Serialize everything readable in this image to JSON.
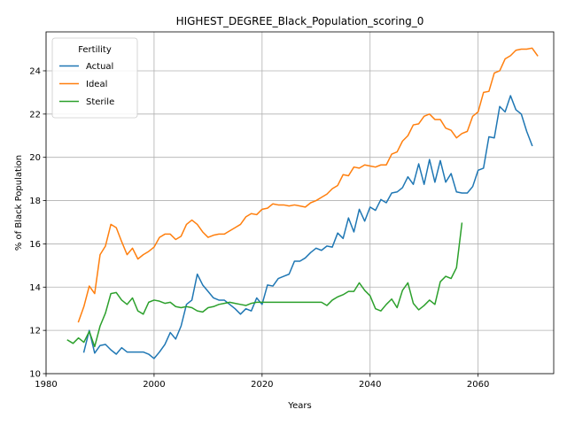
{
  "chart_data": {
    "type": "line",
    "title": "HIGHEST_DEGREE_Black_Population_scoring_0",
    "xlabel": "Years",
    "ylabel": "% of Black Population",
    "xlim": [
      1980,
      2074
    ],
    "ylim": [
      10,
      25.8
    ],
    "xticks": [
      1980,
      2000,
      2020,
      2040,
      2060
    ],
    "yticks": [
      10,
      12,
      14,
      16,
      18,
      20,
      22,
      24
    ],
    "grid": true,
    "legend": {
      "title": "Fertility",
      "placement": "top-left"
    },
    "series": [
      {
        "name": "Actual",
        "color": "#1f77b4",
        "points": [
          [
            1987,
            11.0
          ],
          [
            1988,
            12.0
          ],
          [
            1989,
            10.95
          ],
          [
            1990,
            11.3
          ],
          [
            1991,
            11.35
          ],
          [
            1992,
            11.1
          ],
          [
            1993,
            10.9
          ],
          [
            1994,
            11.2
          ],
          [
            1995,
            11.0
          ],
          [
            1996,
            11.0
          ],
          [
            1997,
            11.0
          ],
          [
            1998,
            11.0
          ],
          [
            1999,
            10.9
          ],
          [
            2000,
            10.7
          ],
          [
            2001,
            11.0
          ],
          [
            2002,
            11.35
          ],
          [
            2003,
            11.9
          ],
          [
            2004,
            11.6
          ],
          [
            2005,
            12.2
          ],
          [
            2006,
            13.2
          ],
          [
            2007,
            13.4
          ],
          [
            2008,
            14.6
          ],
          [
            2009,
            14.1
          ],
          [
            2010,
            13.8
          ],
          [
            2011,
            13.5
          ],
          [
            2012,
            13.4
          ],
          [
            2013,
            13.4
          ],
          [
            2014,
            13.2
          ],
          [
            2015,
            13.0
          ],
          [
            2016,
            12.75
          ],
          [
            2017,
            13.0
          ],
          [
            2018,
            12.9
          ],
          [
            2019,
            13.5
          ],
          [
            2020,
            13.2
          ],
          [
            2021,
            14.1
          ],
          [
            2022,
            14.05
          ],
          [
            2023,
            14.4
          ],
          [
            2024,
            14.5
          ],
          [
            2025,
            14.6
          ],
          [
            2026,
            15.2
          ],
          [
            2027,
            15.2
          ],
          [
            2028,
            15.35
          ],
          [
            2029,
            15.6
          ],
          [
            2030,
            15.8
          ],
          [
            2031,
            15.7
          ],
          [
            2032,
            15.9
          ],
          [
            2033,
            15.85
          ],
          [
            2034,
            16.5
          ],
          [
            2035,
            16.25
          ],
          [
            2036,
            17.2
          ],
          [
            2037,
            16.55
          ],
          [
            2038,
            17.6
          ],
          [
            2039,
            17.05
          ],
          [
            2040,
            17.7
          ],
          [
            2041,
            17.55
          ],
          [
            2042,
            18.05
          ],
          [
            2043,
            17.9
          ],
          [
            2044,
            18.35
          ],
          [
            2045,
            18.4
          ],
          [
            2046,
            18.6
          ],
          [
            2047,
            19.1
          ],
          [
            2048,
            18.75
          ],
          [
            2049,
            19.7
          ],
          [
            2050,
            18.75
          ],
          [
            2051,
            19.9
          ],
          [
            2052,
            18.85
          ],
          [
            2053,
            19.85
          ],
          [
            2054,
            18.85
          ],
          [
            2055,
            19.25
          ],
          [
            2056,
            18.4
          ],
          [
            2057,
            18.35
          ],
          [
            2058,
            18.35
          ],
          [
            2059,
            18.65
          ],
          [
            2060,
            19.4
          ],
          [
            2061,
            19.5
          ],
          [
            2062,
            20.95
          ],
          [
            2063,
            20.9
          ],
          [
            2064,
            22.35
          ],
          [
            2065,
            22.1
          ],
          [
            2066,
            22.85
          ],
          [
            2067,
            22.2
          ],
          [
            2068,
            22.0
          ],
          [
            2069,
            21.2
          ],
          [
            2070,
            20.55
          ]
        ]
      },
      {
        "name": "Ideal",
        "color": "#ff7f0e",
        "points": [
          [
            1986,
            12.4
          ],
          [
            1987,
            13.1
          ],
          [
            1988,
            14.05
          ],
          [
            1989,
            13.7
          ],
          [
            1990,
            15.5
          ],
          [
            1991,
            15.9
          ],
          [
            1992,
            16.9
          ],
          [
            1993,
            16.75
          ],
          [
            1994,
            16.1
          ],
          [
            1995,
            15.5
          ],
          [
            1996,
            15.8
          ],
          [
            1997,
            15.3
          ],
          [
            1998,
            15.5
          ],
          [
            1999,
            15.65
          ],
          [
            2000,
            15.85
          ],
          [
            2001,
            16.3
          ],
          [
            2002,
            16.45
          ],
          [
            2003,
            16.45
          ],
          [
            2004,
            16.2
          ],
          [
            2005,
            16.35
          ],
          [
            2006,
            16.9
          ],
          [
            2007,
            17.1
          ],
          [
            2008,
            16.9
          ],
          [
            2009,
            16.55
          ],
          [
            2010,
            16.3
          ],
          [
            2011,
            16.4
          ],
          [
            2012,
            16.45
          ],
          [
            2013,
            16.45
          ],
          [
            2014,
            16.6
          ],
          [
            2015,
            16.75
          ],
          [
            2016,
            16.9
          ],
          [
            2017,
            17.25
          ],
          [
            2018,
            17.4
          ],
          [
            2019,
            17.35
          ],
          [
            2020,
            17.6
          ],
          [
            2021,
            17.65
          ],
          [
            2022,
            17.85
          ],
          [
            2023,
            17.8
          ],
          [
            2024,
            17.8
          ],
          [
            2025,
            17.75
          ],
          [
            2026,
            17.8
          ],
          [
            2027,
            17.75
          ],
          [
            2028,
            17.7
          ],
          [
            2029,
            17.9
          ],
          [
            2030,
            18.0
          ],
          [
            2031,
            18.15
          ],
          [
            2032,
            18.3
          ],
          [
            2033,
            18.55
          ],
          [
            2034,
            18.7
          ],
          [
            2035,
            19.2
          ],
          [
            2036,
            19.15
          ],
          [
            2037,
            19.55
          ],
          [
            2038,
            19.5
          ],
          [
            2039,
            19.65
          ],
          [
            2040,
            19.6
          ],
          [
            2041,
            19.55
          ],
          [
            2042,
            19.65
          ],
          [
            2043,
            19.65
          ],
          [
            2044,
            20.15
          ],
          [
            2045,
            20.25
          ],
          [
            2046,
            20.75
          ],
          [
            2047,
            21.0
          ],
          [
            2048,
            21.5
          ],
          [
            2049,
            21.55
          ],
          [
            2050,
            21.9
          ],
          [
            2051,
            22.0
          ],
          [
            2052,
            21.75
          ],
          [
            2053,
            21.75
          ],
          [
            2054,
            21.35
          ],
          [
            2055,
            21.25
          ],
          [
            2056,
            20.9
          ],
          [
            2057,
            21.1
          ],
          [
            2058,
            21.2
          ],
          [
            2059,
            21.9
          ],
          [
            2060,
            22.1
          ],
          [
            2061,
            23.0
          ],
          [
            2062,
            23.05
          ],
          [
            2063,
            23.9
          ],
          [
            2064,
            24.0
          ],
          [
            2065,
            24.55
          ],
          [
            2066,
            24.7
          ],
          [
            2067,
            24.95
          ],
          [
            2068,
            25.0
          ],
          [
            2069,
            25.0
          ],
          [
            2070,
            25.05
          ],
          [
            2071,
            24.7
          ]
        ]
      },
      {
        "name": "Sterile",
        "color": "#2ca02c",
        "points": [
          [
            1984,
            11.55
          ],
          [
            1985,
            11.4
          ],
          [
            1986,
            11.65
          ],
          [
            1987,
            11.45
          ],
          [
            1988,
            11.95
          ],
          [
            1989,
            11.25
          ],
          [
            1990,
            12.2
          ],
          [
            1991,
            12.8
          ],
          [
            1992,
            13.7
          ],
          [
            1993,
            13.75
          ],
          [
            1994,
            13.4
          ],
          [
            1995,
            13.2
          ],
          [
            1996,
            13.5
          ],
          [
            1997,
            12.9
          ],
          [
            1998,
            12.75
          ],
          [
            1999,
            13.3
          ],
          [
            2000,
            13.4
          ],
          [
            2001,
            13.35
          ],
          [
            2002,
            13.25
          ],
          [
            2003,
            13.3
          ],
          [
            2004,
            13.1
          ],
          [
            2005,
            13.05
          ],
          [
            2006,
            13.1
          ],
          [
            2007,
            13.05
          ],
          [
            2008,
            12.9
          ],
          [
            2009,
            12.85
          ],
          [
            2010,
            13.05
          ],
          [
            2011,
            13.1
          ],
          [
            2012,
            13.2
          ],
          [
            2013,
            13.25
          ],
          [
            2014,
            13.3
          ],
          [
            2015,
            13.25
          ],
          [
            2016,
            13.2
          ],
          [
            2017,
            13.15
          ],
          [
            2018,
            13.25
          ],
          [
            2019,
            13.3
          ],
          [
            2020,
            13.3
          ],
          [
            2021,
            13.3
          ],
          [
            2022,
            13.3
          ],
          [
            2023,
            13.3
          ],
          [
            2024,
            13.3
          ],
          [
            2025,
            13.3
          ],
          [
            2026,
            13.3
          ],
          [
            2027,
            13.3
          ],
          [
            2028,
            13.3
          ],
          [
            2029,
            13.3
          ],
          [
            2030,
            13.3
          ],
          [
            2031,
            13.3
          ],
          [
            2032,
            13.15
          ],
          [
            2033,
            13.4
          ],
          [
            2034,
            13.55
          ],
          [
            2035,
            13.65
          ],
          [
            2036,
            13.8
          ],
          [
            2037,
            13.8
          ],
          [
            2038,
            14.2
          ],
          [
            2039,
            13.85
          ],
          [
            2040,
            13.6
          ],
          [
            2041,
            13.0
          ],
          [
            2042,
            12.9
          ],
          [
            2043,
            13.2
          ],
          [
            2044,
            13.45
          ],
          [
            2045,
            13.05
          ],
          [
            2046,
            13.85
          ],
          [
            2047,
            14.2
          ],
          [
            2048,
            13.25
          ],
          [
            2049,
            12.95
          ],
          [
            2050,
            13.15
          ],
          [
            2051,
            13.4
          ],
          [
            2052,
            13.2
          ],
          [
            2053,
            14.25
          ],
          [
            2054,
            14.5
          ],
          [
            2055,
            14.4
          ],
          [
            2056,
            14.9
          ],
          [
            2057,
            16.95
          ]
        ]
      }
    ]
  }
}
